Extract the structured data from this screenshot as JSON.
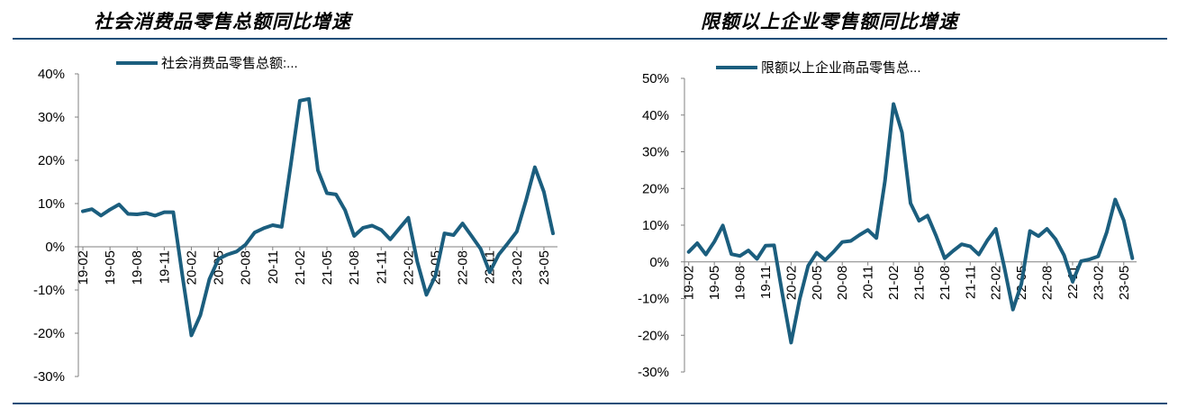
{
  "colors": {
    "series": "#1b5e7e",
    "axis": "#808080",
    "rule": "#1f4e79"
  },
  "chart_data": [
    {
      "type": "line",
      "title": "社会消费品零售总额同比增速",
      "legend": "社会消费品零售总额:...",
      "legend_position": "top",
      "grid": false,
      "ylim": [
        -30,
        40
      ],
      "y_ticks": [
        "40%",
        "30%",
        "20%",
        "10%",
        "0%",
        "-10%",
        "-20%",
        "-30%"
      ],
      "y_tick_values": [
        40,
        30,
        20,
        10,
        0,
        -10,
        -20,
        -30
      ],
      "x_tick_labels": [
        "19-02",
        "19-05",
        "19-08",
        "19-11",
        "20-02",
        "20-05",
        "20-08",
        "20-11",
        "21-02",
        "21-05",
        "21-08",
        "21-11",
        "22-02",
        "22-05",
        "22-08",
        "22-11",
        "23-02",
        "23-05"
      ],
      "x_tick_index": [
        0,
        3,
        6,
        9,
        12,
        15,
        18,
        21,
        24,
        27,
        30,
        33,
        36,
        39,
        42,
        45,
        48,
        51
      ],
      "categories": [
        "19-02",
        "19-03",
        "19-04",
        "19-05",
        "19-06",
        "19-07",
        "19-08",
        "19-09",
        "19-10",
        "19-11",
        "19-12",
        "20-01",
        "20-02",
        "20-03",
        "20-04",
        "20-05",
        "20-06",
        "20-07",
        "20-08",
        "20-09",
        "20-10",
        "20-11",
        "20-12",
        "21-01",
        "21-02",
        "21-03",
        "21-04",
        "21-05",
        "21-06",
        "21-07",
        "21-08",
        "21-09",
        "21-10",
        "21-11",
        "21-12",
        "22-01",
        "22-02",
        "22-03",
        "22-04",
        "22-05",
        "22-06",
        "22-07",
        "22-08",
        "22-09",
        "22-10",
        "22-11",
        "22-12",
        "23-01",
        "23-02",
        "23-03",
        "23-04",
        "23-05",
        "23-06"
      ],
      "series": [
        {
          "name": "社会消费品零售总额:...",
          "values": [
            8.2,
            8.7,
            7.2,
            8.6,
            9.8,
            7.6,
            7.5,
            7.8,
            7.2,
            8.0,
            8.0,
            -6.5,
            -20.5,
            -15.8,
            -7.5,
            -2.8,
            -1.8,
            -1.1,
            0.5,
            3.3,
            4.3,
            5.0,
            4.6,
            19.0,
            33.8,
            34.2,
            17.7,
            12.4,
            12.1,
            8.5,
            2.5,
            4.4,
            4.9,
            3.9,
            1.7,
            4.2,
            6.7,
            -3.5,
            -11.1,
            -6.7,
            3.1,
            2.7,
            5.4,
            2.5,
            -0.5,
            -5.9,
            -1.8,
            0.8,
            3.5,
            10.6,
            18.4,
            12.7,
            3.1
          ]
        }
      ]
    },
    {
      "type": "line",
      "title": "限额以上企业零售额同比增速",
      "legend": "限额以上企业商品零售总...",
      "legend_position": "top",
      "grid": false,
      "ylim": [
        -30,
        50
      ],
      "y_ticks": [
        "50%",
        "40%",
        "30%",
        "20%",
        "10%",
        "0%",
        "-10%",
        "-20%",
        "-30%"
      ],
      "y_tick_values": [
        50,
        40,
        30,
        20,
        10,
        0,
        -10,
        -20,
        -30
      ],
      "x_tick_labels": [
        "19-02",
        "19-05",
        "19-08",
        "19-11",
        "20-02",
        "20-05",
        "20-08",
        "20-11",
        "21-02",
        "21-05",
        "21-08",
        "21-11",
        "22-02",
        "22-05",
        "22-08",
        "22-11",
        "23-02",
        "23-05"
      ],
      "x_tick_index": [
        0,
        3,
        6,
        9,
        12,
        15,
        18,
        21,
        24,
        27,
        30,
        33,
        36,
        39,
        42,
        45,
        48,
        51
      ],
      "categories": [
        "19-02",
        "19-03",
        "19-04",
        "19-05",
        "19-06",
        "19-07",
        "19-08",
        "19-09",
        "19-10",
        "19-11",
        "19-12",
        "20-01",
        "20-02",
        "20-03",
        "20-04",
        "20-05",
        "20-06",
        "20-07",
        "20-08",
        "20-09",
        "20-10",
        "20-11",
        "20-12",
        "21-01",
        "21-02",
        "21-03",
        "21-04",
        "21-05",
        "21-06",
        "21-07",
        "21-08",
        "21-09",
        "21-10",
        "21-11",
        "21-12",
        "22-01",
        "22-02",
        "22-03",
        "22-04",
        "22-05",
        "22-06",
        "22-07",
        "22-08",
        "22-09",
        "22-10",
        "22-11",
        "22-12",
        "23-01",
        "23-02",
        "23-03",
        "23-04",
        "23-05",
        "23-06"
      ],
      "series": [
        {
          "name": "限额以上企业商品零售总...",
          "values": [
            2.7,
            5.1,
            2.0,
            5.5,
            9.9,
            2.1,
            1.6,
            3.1,
            0.8,
            4.4,
            4.5,
            -9.0,
            -22.0,
            -10.2,
            -1.1,
            2.5,
            0.5,
            2.8,
            5.4,
            5.7,
            7.3,
            8.7,
            6.5,
            22.0,
            43.0,
            35.3,
            16.0,
            11.2,
            12.6,
            7.1,
            1.0,
            3.0,
            4.8,
            4.2,
            2.0,
            5.8,
            9.0,
            -1.5,
            -13.0,
            -6.0,
            8.4,
            7.0,
            9.0,
            6.2,
            1.8,
            -5.4,
            0.2,
            0.7,
            1.5,
            8.0,
            17.0,
            11.3,
            1.0
          ]
        }
      ]
    }
  ]
}
